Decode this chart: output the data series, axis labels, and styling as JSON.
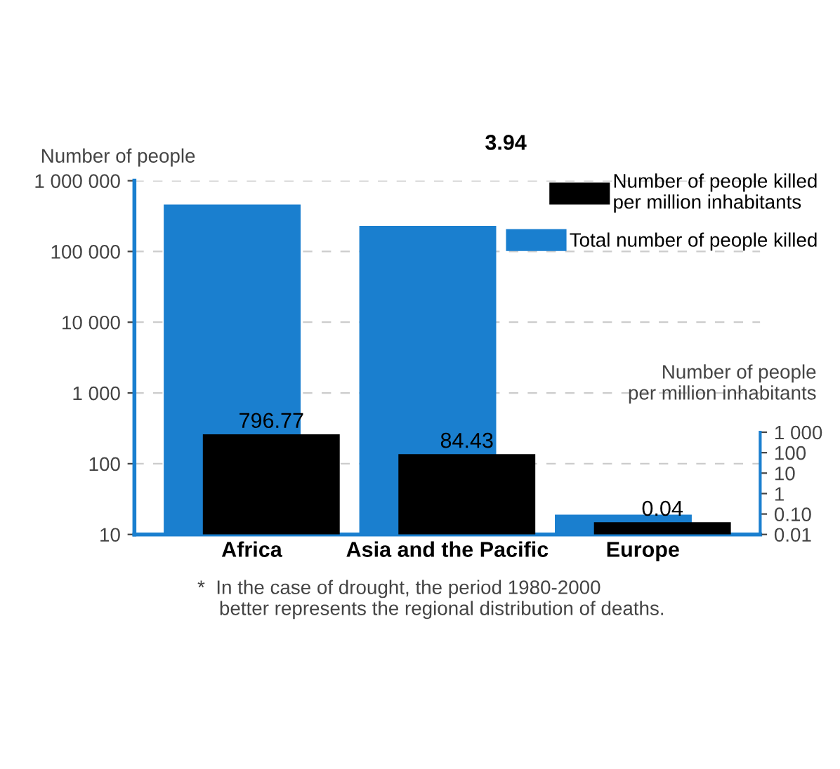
{
  "chart_data": [
    {
      "type": "bar",
      "categories": [
        null,
        null,
        null
      ],
      "ylabel": "Number of people",
      "series": [
        {
          "name": "Total number of people killed",
          "color": "#1a7fcf",
          "values": [
            460000,
            230000,
            19
          ]
        }
      ],
      "log": true,
      "ylim": [
        10,
        1000000
      ],
      "yticks": [
        {
          "value": 10,
          "label": "10"
        },
        {
          "value": 100,
          "label": "100"
        },
        {
          "value": 1000,
          "label": "1 000"
        },
        {
          "value": 10000,
          "label": "10 000"
        },
        {
          "value": 100000,
          "label": "100 000"
        },
        {
          "value": 1000000,
          "label": "1 000 000"
        }
      ],
      "grid": "y",
      "tick_labels": "y",
      "legend": "top right",
      "annotations": [
        "*  In the case of drought, the period 1980-2000\n    better represents the regional distribution of deaths."
      ]
    },
    {
      "type": "bar",
      "categories": [
        "Africa",
        "Asia and the Pacific",
        "Europe"
      ],
      "ylabel": "Number of people\nper million inhabitants",
      "series": [
        {
          "name": "Number of people killed\nper million inhabitants",
          "color": "#000000",
          "values": [
            796.77,
            84.43,
            0.04
          ],
          "value_labels": [
            "796.77",
            "84.43",
            "0.04"
          ]
        }
      ],
      "log": true,
      "ylim": [
        0.01,
        2000000000000000.0
      ],
      "yticks": [
        {
          "value": 0.01,
          "label": "0.01"
        },
        {
          "value": 0.1,
          "label": "0.10"
        },
        1,
        10,
        100,
        {
          "value": 1000,
          "label": "1 000"
        }
      ],
      "legend": "top right",
      "annotations": [
        "3.94"
      ]
    }
  ]
}
